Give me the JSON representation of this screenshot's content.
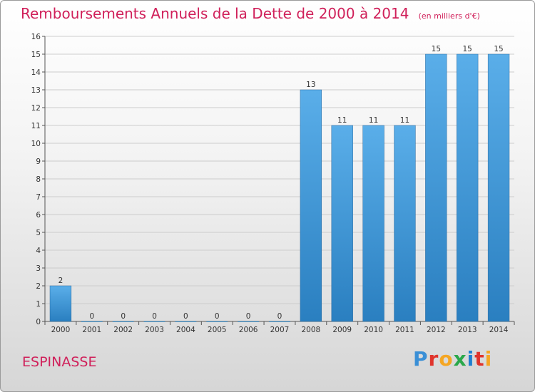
{
  "title": "Remboursements Annuels de la Dette de 2000 à 2014",
  "unit_note": "(en milliers d'€)",
  "location": "ESPINASSE",
  "brand": {
    "text": "Proxiti",
    "colors": [
      "#3a8fd6",
      "#e0342c",
      "#f5a623",
      "#2aa84a",
      "#1f7fd0",
      "#e0342c",
      "#f5a623"
    ]
  },
  "colors": {
    "accent": "#d0205a",
    "bar_top": "#5aaee9",
    "bar_bottom": "#2a7fc0",
    "grid": "#cccccc"
  },
  "chart_data": {
    "type": "bar",
    "title": "Remboursements Annuels de la Dette de 2000 à 2014",
    "xlabel": "",
    "ylabel": "",
    "categories": [
      "2000",
      "2001",
      "2002",
      "2003",
      "2004",
      "2005",
      "2006",
      "2007",
      "2008",
      "2009",
      "2010",
      "2011",
      "2012",
      "2013",
      "2014"
    ],
    "values": [
      2,
      0,
      0,
      0,
      0,
      0,
      0,
      0,
      13,
      11,
      11,
      11,
      15,
      15,
      15
    ],
    "ylim": [
      0,
      16
    ],
    "yticks": [
      0,
      1,
      2,
      3,
      4,
      5,
      6,
      7,
      8,
      9,
      10,
      11,
      12,
      13,
      14,
      15,
      16
    ],
    "grid": true
  }
}
